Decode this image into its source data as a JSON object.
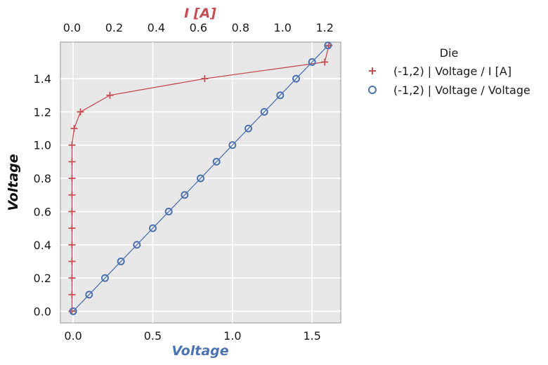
{
  "chart_data": {
    "type": "line",
    "title": "",
    "xlabel_bottom": "Voltage",
    "xlabel_top": "I [A]",
    "ylabel": "Voltage",
    "xlim_bottom": [
      -0.08,
      1.68
    ],
    "xlim_top": [
      -0.055,
      1.276
    ],
    "ylim": [
      -0.07,
      1.62
    ],
    "grid": true,
    "x_ticks_bottom": [
      "0.0",
      "0.5",
      "1.0",
      "1.5"
    ],
    "x_ticks_top": [
      "0.0",
      "0.2",
      "0.4",
      "0.6",
      "0.8",
      "1.0",
      "1.2"
    ],
    "y_ticks": [
      "0.0",
      "0.2",
      "0.4",
      "0.6",
      "0.8",
      "1.0",
      "1.2",
      "1.4"
    ],
    "legend": {
      "title": "Die",
      "placement": "outside-right",
      "entries": [
        "(-1,2) | Voltage / I [A]",
        "(-1,2) | Voltage / Voltage"
      ]
    },
    "colors": {
      "current": "#c44e52",
      "voltage": "#4c72b0",
      "plot_bg": "#e8e8e8"
    },
    "series": [
      {
        "name": "(-1,2) | Voltage / I [A]",
        "axis": "top",
        "marker": "plus",
        "x": [
          0.0,
          0.0,
          0.0,
          0.0,
          0.0,
          0.0,
          0.0,
          0.0,
          0.0,
          0.0,
          0.0,
          0.01,
          0.04,
          0.18,
          0.63,
          1.2,
          1.22
        ],
        "y": [
          0.0,
          0.1,
          0.2,
          0.3,
          0.4,
          0.5,
          0.6,
          0.7,
          0.8,
          0.9,
          1.0,
          1.1,
          1.2,
          1.3,
          1.4,
          1.5,
          1.6
        ]
      },
      {
        "name": "(-1,2) | Voltage / Voltage",
        "axis": "bottom",
        "marker": "circle",
        "x": [
          0.0,
          0.1,
          0.2,
          0.3,
          0.4,
          0.5,
          0.6,
          0.7,
          0.8,
          0.9,
          1.0,
          1.1,
          1.2,
          1.3,
          1.4,
          1.5,
          1.6
        ],
        "y": [
          0.0,
          0.1,
          0.2,
          0.3,
          0.4,
          0.5,
          0.6,
          0.7,
          0.8,
          0.9,
          1.0,
          1.1,
          1.2,
          1.3,
          1.4,
          1.5,
          1.6
        ]
      }
    ]
  }
}
